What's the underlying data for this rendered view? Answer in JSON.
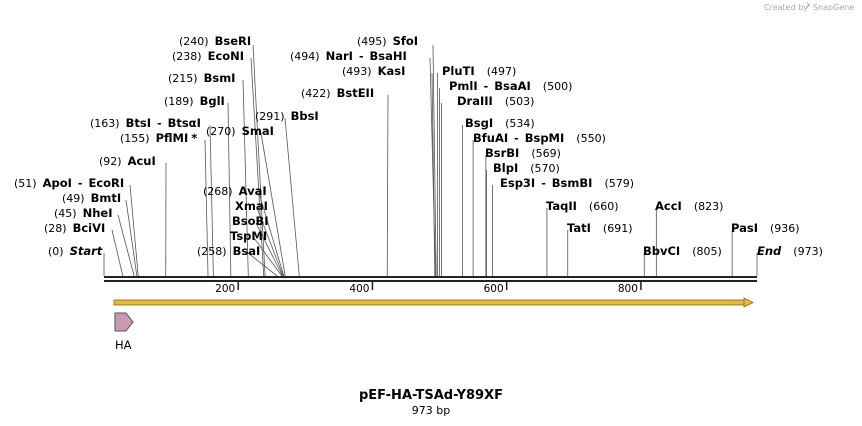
{
  "map": {
    "title": "pEF-HA-TSAd-Y89XF",
    "length_label": "973 bp",
    "length_bp": 973
  },
  "credit": {
    "text": "Created by",
    "brand": "SnapGene",
    "icon": "snapgene-logo-icon"
  },
  "axis": {
    "ticks": [
      200,
      400,
      600,
      800
    ],
    "tick_labels": [
      "200",
      "400",
      "600",
      "800"
    ]
  },
  "enzymes": [
    {
      "name": "Start",
      "pos": "(0)",
      "bp": 0,
      "italic": true
    },
    {
      "name": "BciVI",
      "pos": "(28)",
      "bp": 28
    },
    {
      "name": "NheI",
      "pos": "(45)",
      "bp": 45
    },
    {
      "name": "BmtI",
      "pos": "(49)",
      "bp": 49
    },
    {
      "name": "ApoI",
      "name2": "EcoRI",
      "pos": "(51)",
      "bp": 51
    },
    {
      "name": "AcuI",
      "pos": "(92)",
      "bp": 92
    },
    {
      "name": "PflMI",
      "pos": "(155)",
      "bp": 155,
      "star": true
    },
    {
      "name": "BtsI",
      "name2": "BtsαI",
      "pos": "(163)",
      "bp": 163
    },
    {
      "name": "BglI",
      "pos": "(189)",
      "bp": 189
    },
    {
      "name": "BsmI",
      "pos": "(215)",
      "bp": 215
    },
    {
      "name": "EcoNI",
      "pos": "(238)",
      "bp": 238
    },
    {
      "name": "BseRI",
      "pos": "(240)",
      "bp": 240
    },
    {
      "name": "BsaI",
      "pos": "(258)",
      "bp": 258
    },
    {
      "name": "TspMI",
      "pos": "",
      "bp": 265
    },
    {
      "name": "BsoBI",
      "pos": "",
      "bp": 266
    },
    {
      "name": "XmaI",
      "pos": "",
      "bp": 267
    },
    {
      "name": "AvaI",
      "pos": "(268)",
      "bp": 268
    },
    {
      "name": "SmaI",
      "pos": "(270)",
      "bp": 270
    },
    {
      "name": "BbsI",
      "pos": "(291)",
      "bp": 291
    },
    {
      "name": "BstEII",
      "pos": "(422)",
      "bp": 422
    },
    {
      "name": "KasI",
      "pos": "(493)",
      "bp": 493
    },
    {
      "name": "NarI",
      "name2": "BsaHI",
      "pos": "(494)",
      "bp": 494
    },
    {
      "name": "SfoI",
      "pos": "(495)",
      "bp": 495
    },
    {
      "name": "PluTI",
      "pos": "(497)",
      "bp": 497
    },
    {
      "name": "PmlI",
      "name2": "BsaAI",
      "pos": "(500)",
      "bp": 500
    },
    {
      "name": "DraIII",
      "pos": "(503)",
      "bp": 503
    },
    {
      "name": "BsgI",
      "pos": "(534)",
      "bp": 534
    },
    {
      "name": "BfuAI",
      "name2": "BspMI",
      "pos": "(550)",
      "bp": 550
    },
    {
      "name": "BsrBI",
      "pos": "(569)",
      "bp": 569
    },
    {
      "name": "BlpI",
      "pos": "(570)",
      "bp": 570
    },
    {
      "name": "Esp3I",
      "name2": "BsmBI",
      "pos": "(579)",
      "bp": 579
    },
    {
      "name": "TaqII",
      "pos": "(660)",
      "bp": 660
    },
    {
      "name": "TatI",
      "pos": "(691)",
      "bp": 691
    },
    {
      "name": "BbvCI",
      "pos": "(805)",
      "bp": 805
    },
    {
      "name": "AccI",
      "pos": "(823)",
      "bp": 823
    },
    {
      "name": "PasI",
      "pos": "(936)",
      "bp": 936
    },
    {
      "name": "End",
      "pos": "(973)",
      "bp": 973,
      "italic": true
    }
  ],
  "features": [
    {
      "name": "HA",
      "type": "tag",
      "color": "#c99bb3",
      "start_bp": 1,
      "end_bp": 27
    }
  ],
  "orf": {
    "color": "#e2b84a",
    "direction": "forward",
    "start_bp": 1,
    "end_bp": 973
  },
  "colors": {
    "backbone": "#222222",
    "leader": "#555555",
    "feature_stroke": "#555555"
  }
}
